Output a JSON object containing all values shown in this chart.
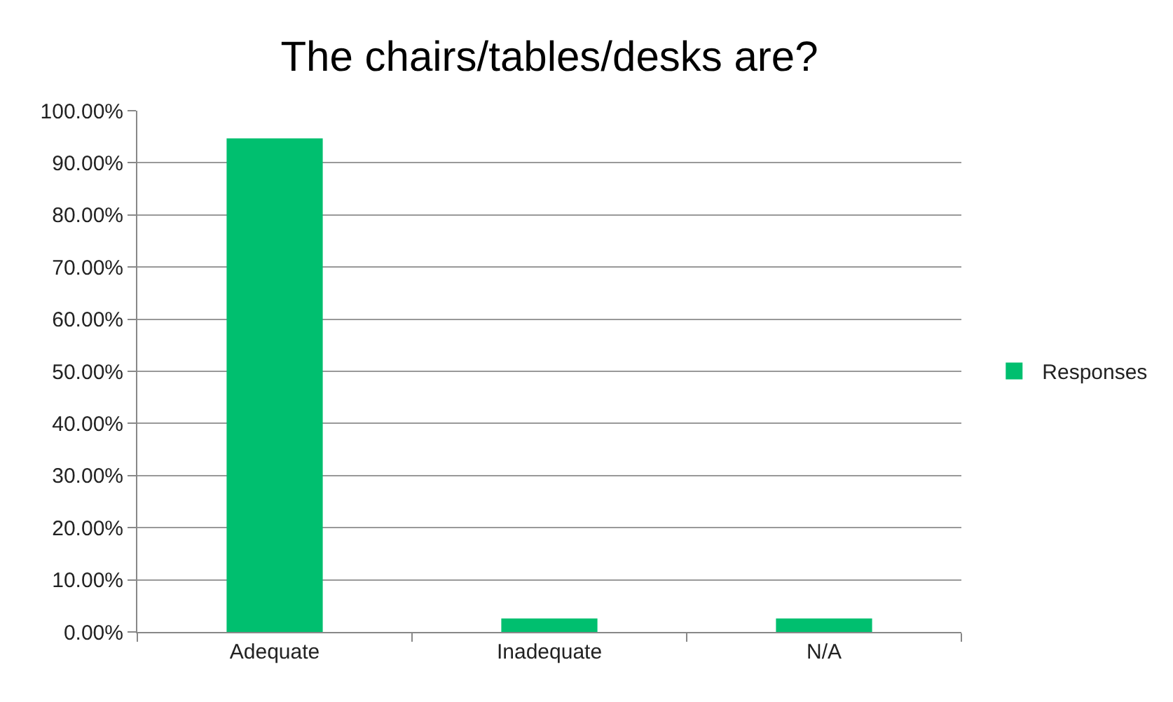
{
  "chart_data": {
    "type": "bar",
    "title": "The chairs/tables/desks are?",
    "categories": [
      "Adequate",
      "Inadequate",
      "N/A"
    ],
    "series": [
      {
        "name": "Responses",
        "color": "#00bf6f",
        "values": [
          94.7,
          2.6,
          2.6
        ]
      }
    ],
    "ylim": [
      0,
      100
    ],
    "yticks": [
      {
        "value": 0,
        "label": "0.00%"
      },
      {
        "value": 10,
        "label": "10.00%"
      },
      {
        "value": 20,
        "label": "20.00%"
      },
      {
        "value": 30,
        "label": "30.00%"
      },
      {
        "value": 40,
        "label": "40.00%"
      },
      {
        "value": 50,
        "label": "50.00%"
      },
      {
        "value": 60,
        "label": "60.00%"
      },
      {
        "value": 70,
        "label": "70.00%"
      },
      {
        "value": 80,
        "label": "80.00%"
      },
      {
        "value": 90,
        "label": "90.00%"
      },
      {
        "value": 100,
        "label": "100.00%"
      }
    ],
    "grid": "y",
    "legend": "right"
  }
}
